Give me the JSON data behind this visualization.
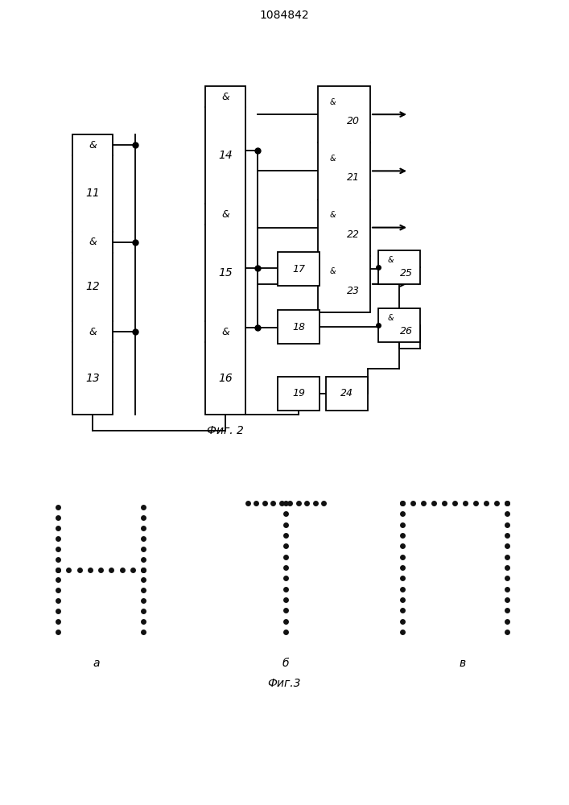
{
  "title": "1084842",
  "fig2_label": "Фиг. 2",
  "fig3_label": "Фиг.3",
  "fig3a_label": "а",
  "fig3b_label": "б",
  "fig3v_label": "в",
  "bg_color": "#ffffff",
  "line_color": "#000000",
  "dot_color": "#111111",
  "dot_size": 5.0
}
